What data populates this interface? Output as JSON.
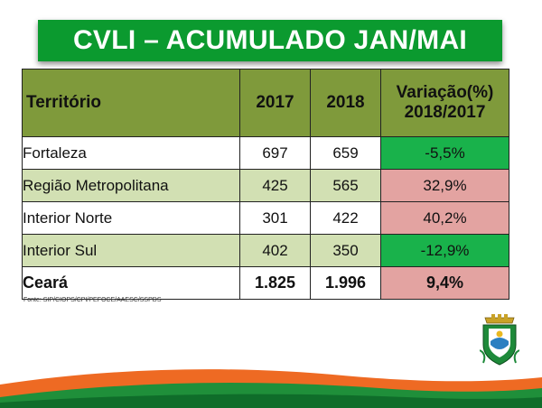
{
  "title": "CVLI – ACUMULADO JAN/MAI",
  "table": {
    "headers": [
      "Território",
      "2017",
      "2018",
      "Variação(%)",
      "2018/2017"
    ],
    "rows": [
      {
        "territorio": "Fortaleza",
        "v2017": "697",
        "v2018": "659",
        "variacao": "-5,5%"
      },
      {
        "territorio": "Região Metropolitana",
        "v2017": "425",
        "v2018": "565",
        "variacao": "32,9%"
      },
      {
        "territorio": "Interior Norte",
        "v2017": "301",
        "v2018": "422",
        "variacao": "40,2%"
      },
      {
        "territorio": "Interior Sul",
        "v2017": "402",
        "v2018": "350",
        "variacao": "-12,9%"
      }
    ],
    "total": {
      "territorio": "Ceará",
      "v2017": "1.825",
      "v2018": "1.996",
      "variacao": "9,4%"
    }
  },
  "footnote": "Fonte: SIP/CIOPS/CPI/PEFOCE/AAESC/SSPDS",
  "colors": {
    "title_bg": "#0b9a2f",
    "header_bg": "#7f9a3b",
    "row_alt_bg": "#d2e0b3",
    "decrease_bg": "#19b24b",
    "increase_bg": "#e3a3a1",
    "wave_orange": "#ee6a23",
    "wave_green": "#1f8f3a"
  },
  "icons": {
    "crest": "ceara-coat-of-arms-icon"
  }
}
